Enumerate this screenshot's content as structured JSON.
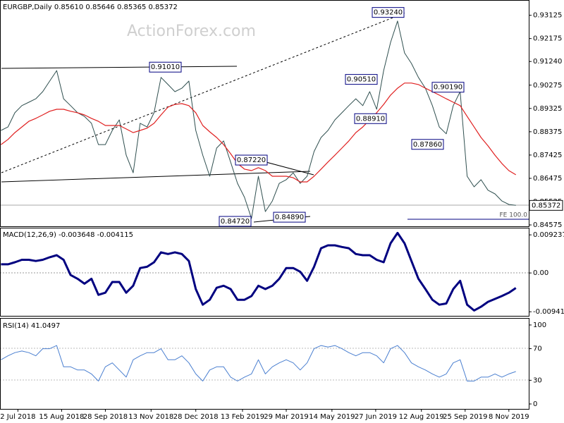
{
  "chart_data": [
    {
      "type": "line",
      "title": "EURGBP,Daily  0.85610 0.85646 0.85365 0.85372",
      "watermark": "ActionForex.com",
      "xlim": [
        "2018-06-14",
        "2019-11-28"
      ],
      "x": [
        "2018-06-15",
        "2018-06-22",
        "2018-06-29",
        "2018-07-06",
        "2018-07-13",
        "2018-07-20",
        "2018-07-27",
        "2018-08-03",
        "2018-08-10",
        "2018-08-17",
        "2018-08-24",
        "2018-08-31",
        "2018-09-07",
        "2018-09-14",
        "2018-09-21",
        "2018-09-28",
        "2018-10-05",
        "2018-10-12",
        "2018-10-19",
        "2018-10-26",
        "2018-11-02",
        "2018-11-09",
        "2018-11-16",
        "2018-11-23",
        "2018-11-30",
        "2018-12-07",
        "2018-12-14",
        "2018-12-21",
        "2018-12-28",
        "2019-01-04",
        "2019-01-11",
        "2019-01-18",
        "2019-01-25",
        "2019-02-01",
        "2019-02-08",
        "2019-02-15",
        "2019-02-22",
        "2019-03-01",
        "2019-03-08",
        "2019-03-15",
        "2019-03-22",
        "2019-03-29",
        "2019-04-05",
        "2019-04-12",
        "2019-04-19",
        "2019-04-26",
        "2019-05-03",
        "2019-05-10",
        "2019-05-17",
        "2019-05-24",
        "2019-05-31",
        "2019-06-07",
        "2019-06-14",
        "2019-06-21",
        "2019-06-28",
        "2019-07-05",
        "2019-07-12",
        "2019-07-19",
        "2019-07-26",
        "2019-08-02",
        "2019-08-09",
        "2019-08-16",
        "2019-08-23",
        "2019-08-30",
        "2019-09-06",
        "2019-09-13",
        "2019-09-20",
        "2019-09-27",
        "2019-10-04",
        "2019-10-11",
        "2019-10-18",
        "2019-10-25",
        "2019-11-01",
        "2019-11-08",
        "2019-11-15"
      ],
      "series": [
        {
          "color": "#2f4f4f",
          "values": [
            0.8843,
            0.8857,
            0.8915,
            0.8944,
            0.8958,
            0.8972,
            0.9001,
            0.9044,
            0.9087,
            0.8972,
            0.8944,
            0.8915,
            0.89,
            0.8872,
            0.8785,
            0.8785,
            0.8843,
            0.8886,
            0.8742,
            0.867,
            0.8872,
            0.8857,
            0.8915,
            0.9059,
            0.903,
            0.9001,
            0.9015,
            0.9044,
            0.8843,
            0.8742,
            0.8656,
            0.8771,
            0.88,
            0.8714,
            0.8627,
            0.857,
            0.8484,
            0.8656,
            0.8512,
            0.8555,
            0.8627,
            0.8642,
            0.867,
            0.8627,
            0.8656,
            0.8757,
            0.8814,
            0.8843,
            0.8886,
            0.8915,
            0.8944,
            0.8972,
            0.8944,
            0.9001,
            0.8929,
            0.9087,
            0.9202,
            0.9289,
            0.9159,
            0.9116,
            0.9059,
            0.9015,
            0.8944,
            0.8857,
            0.8829,
            0.8944,
            0.9001,
            0.8656,
            0.8613,
            0.8642,
            0.8599,
            0.8584,
            0.8555,
            0.8541,
            0.85372
          ]
        },
        {
          "color": "#e02020",
          "values": [
            0.8785,
            0.8806,
            0.8834,
            0.8857,
            0.888,
            0.8892,
            0.8906,
            0.8921,
            0.8929,
            0.8929,
            0.8921,
            0.8915,
            0.8906,
            0.8892,
            0.888,
            0.8863,
            0.8863,
            0.8863,
            0.8849,
            0.8834,
            0.8843,
            0.8852,
            0.8872,
            0.8906,
            0.8938,
            0.8949,
            0.8952,
            0.8944,
            0.8915,
            0.8863,
            0.8837,
            0.8814,
            0.8785,
            0.8748,
            0.8708,
            0.8685,
            0.8679,
            0.8691,
            0.8679,
            0.8656,
            0.8656,
            0.8656,
            0.865,
            0.8633,
            0.8633,
            0.8656,
            0.8685,
            0.8714,
            0.8742,
            0.8771,
            0.88,
            0.8834,
            0.8857,
            0.8886,
            0.8915,
            0.8949,
            0.8987,
            0.9015,
            0.9036,
            0.9036,
            0.903,
            0.9015,
            0.9001,
            0.8987,
            0.8972,
            0.8958,
            0.8944,
            0.89,
            0.8857,
            0.8814,
            0.878,
            0.8742,
            0.8708,
            0.8679,
            0.8662
          ]
        }
      ],
      "ylim": [
        0.8449,
        0.9369
      ],
      "yticks": [
        0.93125,
        0.92175,
        {
          "value": 0.9124,
          "label": "0.91240"
        },
        0.90275,
        0.89325,
        0.88375,
        0.87425,
        0.86475,
        0.85525,
        0.84575
      ],
      "last_price": 0.85372,
      "annotations": [
        {
          "value": 0.9324,
          "label": "0.93240"
        },
        {
          "value": 0.9101,
          "label": "0.91010"
        },
        {
          "value": 0.9051,
          "label": "0.90510"
        },
        {
          "value": 0.9019,
          "label": "0.90190"
        },
        {
          "value": 0.8891,
          "label": "0.88910"
        },
        {
          "value": 0.8786,
          "label": "0.87860"
        },
        {
          "value": 0.8722,
          "label": "0.87220"
        },
        {
          "value": 0.8472,
          "label": "0.84720"
        },
        {
          "value": 0.8489,
          "label": "0.84890"
        }
      ],
      "fe_label": "FE 100.0"
    },
    {
      "type": "line",
      "title": "MACD(12,26,9) -0.003648 -0.004115",
      "series": [
        {
          "color": "#000080",
          "values": [
            0.0021,
            0.0021,
            0.0026,
            0.0032,
            0.0032,
            0.0029,
            0.0032,
            0.0038,
            0.0043,
            0.0032,
            -0.0005,
            -0.0014,
            -0.0026,
            -0.0014,
            -0.0053,
            -0.0048,
            -0.0022,
            -0.0022,
            -0.0048,
            -0.0031,
            0.0012,
            0.0015,
            0.0026,
            0.005,
            0.0046,
            0.005,
            0.0046,
            0.0029,
            -0.0039,
            -0.0077,
            -0.0065,
            -0.0036,
            -0.0031,
            -0.0039,
            -0.0065,
            -0.0065,
            -0.0056,
            -0.0031,
            -0.0039,
            -0.0031,
            -0.0014,
            0.0012,
            0.0012,
            0.0003,
            -0.0019,
            0.0015,
            0.006,
            0.0067,
            0.0067,
            0.0063,
            0.006,
            0.0046,
            0.0043,
            0.0043,
            0.0032,
            0.0026,
            0.0072,
            0.0097,
            0.0072,
            0.0029,
            -0.0014,
            -0.0039,
            -0.0065,
            -0.0077,
            -0.0074,
            -0.0039,
            -0.0019,
            -0.0077,
            -0.0091,
            -0.0082,
            -0.007,
            -0.0063,
            -0.0056,
            -0.0048,
            -0.003648
          ]
        }
      ],
      "ylim": [
        -0.0104,
        0.0108
      ],
      "yticks": [
        0.009237,
        {
          "value": 0,
          "label": "0.00"
        },
        -0.009413
      ]
    },
    {
      "type": "line",
      "title": "RSI(14) 41.0497",
      "series": [
        {
          "color": "#4a7fd0",
          "values": [
            56,
            61,
            65,
            67,
            65,
            61,
            70,
            70,
            74,
            47,
            47,
            43,
            43,
            38,
            29,
            47,
            52,
            43,
            34,
            56,
            61,
            65,
            65,
            70,
            56,
            56,
            61,
            52,
            38,
            29,
            43,
            47,
            47,
            34,
            29,
            34,
            38,
            56,
            38,
            47,
            52,
            56,
            52,
            43,
            52,
            70,
            74,
            72,
            74,
            70,
            65,
            61,
            65,
            65,
            61,
            52,
            70,
            74,
            65,
            52,
            47,
            43,
            38,
            34,
            38,
            52,
            56,
            29,
            29,
            34,
            34,
            38,
            34,
            38,
            41.0497
          ]
        }
      ],
      "ylim": [
        -6.25,
        108
      ],
      "yticks": [
        100,
        70,
        30,
        0
      ],
      "xticks": [
        {
          "value": "2018-07-02",
          "label": "2 Jul 2018"
        },
        {
          "value": "2018-08-15",
          "label": "15 Aug 2018"
        },
        {
          "value": "2018-09-28",
          "label": "28 Sep 2018"
        },
        {
          "value": "2018-11-13",
          "label": "13 Nov 2018"
        },
        {
          "value": "2018-12-28",
          "label": "28 Dec 2018"
        },
        {
          "value": "2019-02-13",
          "label": "13 Feb 2019"
        },
        {
          "value": "2019-03-29",
          "label": "29 Mar 2019"
        },
        {
          "value": "2019-05-14",
          "label": "14 May 2019"
        },
        {
          "value": "2019-06-27",
          "label": "27 Jun 2019"
        },
        {
          "value": "2019-08-12",
          "label": "12 Aug 2019"
        },
        {
          "value": "2019-09-25",
          "label": "25 Sep 2019"
        },
        {
          "value": "2019-11-08",
          "label": "8 Nov 2019"
        }
      ]
    }
  ]
}
